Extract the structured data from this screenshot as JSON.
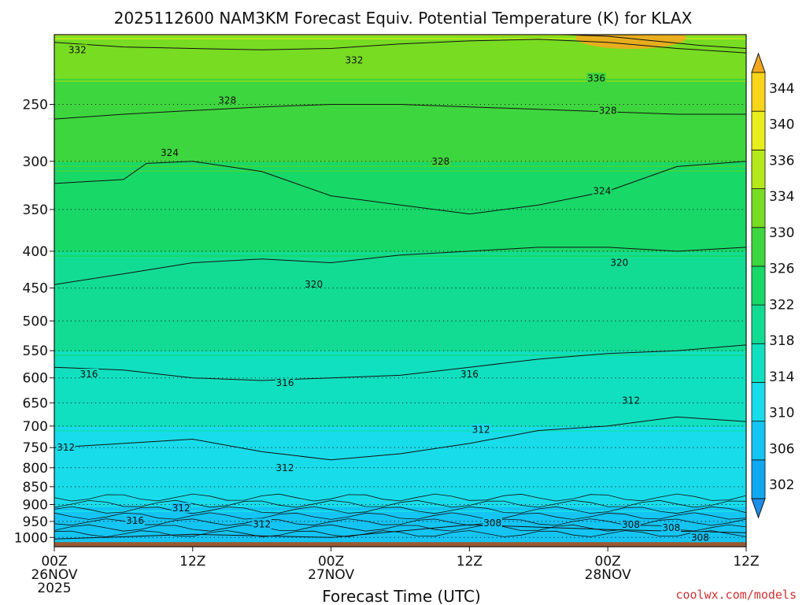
{
  "colors": {
    "background": "#ffffff",
    "ground": "#9a5a32",
    "contour": "#111111",
    "credit": "#d03030"
  },
  "chart_data": {
    "type": "heatmap",
    "title": "2025112600 NAM3KM Forecast Equiv. Potential Temperature (K) for KLAX",
    "xlabel": "Forecast Time (UTC)",
    "ylabel": "",
    "variable": "Equivalent Potential Temperature (K)",
    "x_range_hours": [
      0,
      60
    ],
    "x_ticks": [
      {
        "hour": 0,
        "lines": [
          "00Z",
          "26NOV",
          "2025"
        ]
      },
      {
        "hour": 12,
        "lines": [
          "12Z"
        ]
      },
      {
        "hour": 24,
        "lines": [
          "00Z",
          "27NOV"
        ]
      },
      {
        "hour": 36,
        "lines": [
          "12Z"
        ]
      },
      {
        "hour": 48,
        "lines": [
          "00Z",
          "28NOV"
        ]
      },
      {
        "hour": 60,
        "lines": [
          "12Z"
        ]
      }
    ],
    "y_range_hpa": [
      1030,
      200
    ],
    "y_scale": "log",
    "y_ticks": [
      250,
      300,
      350,
      400,
      450,
      500,
      550,
      600,
      650,
      700,
      750,
      800,
      850,
      900,
      950,
      1000
    ],
    "colorbar": {
      "levels": [
        302,
        306,
        310,
        314,
        318,
        322,
        326,
        330,
        334,
        336,
        340,
        344
      ],
      "tick_labels": [
        "344",
        "340",
        "336",
        "334",
        "330",
        "326",
        "322",
        "318",
        "314",
        "310",
        "306",
        "302"
      ],
      "colors": [
        "#1a8ee8",
        "#10a8f0",
        "#14c4f2",
        "#18dcea",
        "#10e0c0",
        "#12dc94",
        "#18d868",
        "#3ed63e",
        "#78dc22",
        "#b4e81a",
        "#e8ee1c",
        "#f8d41a",
        "#f2a81e"
      ]
    },
    "profile": [
      {
        "p": 1000,
        "theta_e": 308
      },
      {
        "p": 950,
        "theta_e": 309
      },
      {
        "p": 900,
        "theta_e": 310
      },
      {
        "p": 850,
        "theta_e": 311
      },
      {
        "p": 800,
        "theta_e": 312
      },
      {
        "p": 750,
        "theta_e": 313
      },
      {
        "p": 700,
        "theta_e": 314
      },
      {
        "p": 650,
        "theta_e": 315
      },
      {
        "p": 600,
        "theta_e": 316
      },
      {
        "p": 550,
        "theta_e": 318
      },
      {
        "p": 500,
        "theta_e": 319
      },
      {
        "p": 450,
        "theta_e": 320
      },
      {
        "p": 400,
        "theta_e": 322
      },
      {
        "p": 350,
        "theta_e": 324
      },
      {
        "p": 300,
        "theta_e": 326
      },
      {
        "p": 250,
        "theta_e": 328
      },
      {
        "p": 220,
        "theta_e": 331
      },
      {
        "p": 200,
        "theta_e": 334
      }
    ],
    "contour_lines": [
      {
        "label": "332",
        "pts": [
          [
            0,
            205
          ],
          [
            6,
            208
          ],
          [
            12,
            209
          ],
          [
            18,
            210
          ],
          [
            24,
            209
          ],
          [
            30,
            206
          ],
          [
            36,
            204
          ],
          [
            42,
            203
          ],
          [
            48,
            205
          ],
          [
            54,
            209
          ],
          [
            60,
            212
          ]
        ]
      },
      {
        "label": "336",
        "pts": [
          [
            44,
            200
          ],
          [
            48,
            201
          ],
          [
            52,
            204
          ],
          [
            56,
            207
          ],
          [
            60,
            209
          ]
        ]
      },
      {
        "label": "328",
        "pts": [
          [
            0,
            262
          ],
          [
            6,
            258
          ],
          [
            12,
            255
          ],
          [
            18,
            252
          ],
          [
            24,
            250
          ],
          [
            30,
            250
          ],
          [
            36,
            252
          ],
          [
            42,
            254
          ],
          [
            48,
            256
          ],
          [
            54,
            258
          ],
          [
            60,
            258
          ]
        ]
      },
      {
        "label": "324",
        "pts": [
          [
            0,
            322
          ],
          [
            6,
            318
          ],
          [
            8,
            302
          ],
          [
            12,
            300
          ],
          [
            18,
            310
          ],
          [
            24,
            335
          ],
          [
            30,
            345
          ],
          [
            36,
            355
          ],
          [
            42,
            345
          ],
          [
            48,
            330
          ],
          [
            54,
            305
          ],
          [
            60,
            300
          ]
        ]
      },
      {
        "label": "320",
        "pts": [
          [
            0,
            445
          ],
          [
            6,
            430
          ],
          [
            12,
            415
          ],
          [
            18,
            410
          ],
          [
            24,
            415
          ],
          [
            30,
            405
          ],
          [
            36,
            400
          ],
          [
            42,
            395
          ],
          [
            48,
            395
          ],
          [
            54,
            400
          ],
          [
            60,
            395
          ]
        ]
      },
      {
        "label": "316",
        "pts": [
          [
            0,
            580
          ],
          [
            6,
            585
          ],
          [
            12,
            600
          ],
          [
            18,
            605
          ],
          [
            24,
            600
          ],
          [
            30,
            595
          ],
          [
            36,
            580
          ],
          [
            42,
            565
          ],
          [
            48,
            555
          ],
          [
            54,
            550
          ],
          [
            60,
            540
          ]
        ]
      },
      {
        "label": "312",
        "pts": [
          [
            0,
            750
          ],
          [
            6,
            740
          ],
          [
            12,
            730
          ],
          [
            18,
            760
          ],
          [
            24,
            780
          ],
          [
            30,
            765
          ],
          [
            36,
            740
          ],
          [
            42,
            710
          ],
          [
            48,
            700
          ],
          [
            54,
            680
          ],
          [
            60,
            690
          ]
        ]
      },
      {
        "label": "308",
        "pts": [
          [
            0,
            1005
          ],
          [
            12,
            990
          ],
          [
            24,
            1000
          ],
          [
            36,
            960
          ],
          [
            48,
            975
          ],
          [
            60,
            985
          ]
        ]
      }
    ],
    "contour_labels": [
      {
        "text": "332",
        "hour": 2.0,
        "p": 210
      },
      {
        "text": "332",
        "hour": 26.0,
        "p": 217
      },
      {
        "text": "336",
        "hour": 47.0,
        "p": 230
      },
      {
        "text": "328",
        "hour": 15.0,
        "p": 247
      },
      {
        "text": "328",
        "hour": 48.0,
        "p": 255
      },
      {
        "text": "328",
        "hour": 33.5,
        "p": 300
      },
      {
        "text": "324",
        "hour": 10.0,
        "p": 292
      },
      {
        "text": "324",
        "hour": 47.5,
        "p": 330
      },
      {
        "text": "320",
        "hour": 22.5,
        "p": 445
      },
      {
        "text": "320",
        "hour": 49.0,
        "p": 415
      },
      {
        "text": "316",
        "hour": 3.0,
        "p": 593
      },
      {
        "text": "316",
        "hour": 20.0,
        "p": 610
      },
      {
        "text": "316",
        "hour": 36.0,
        "p": 593
      },
      {
        "text": "312",
        "hour": 1.0,
        "p": 750
      },
      {
        "text": "312",
        "hour": 20.0,
        "p": 800
      },
      {
        "text": "312",
        "hour": 37.0,
        "p": 708
      },
      {
        "text": "312",
        "hour": 50.0,
        "p": 645
      },
      {
        "text": "312",
        "hour": 11.0,
        "p": 910
      },
      {
        "text": "316",
        "hour": 7.0,
        "p": 948
      },
      {
        "text": "312",
        "hour": 18.0,
        "p": 958
      },
      {
        "text": "308",
        "hour": 38.0,
        "p": 955
      },
      {
        "text": "308",
        "hour": 50.0,
        "p": 960
      },
      {
        "text": "308",
        "hour": 53.5,
        "p": 970
      },
      {
        "text": "308",
        "hour": 56.0,
        "p": 1000
      }
    ]
  },
  "footer": {
    "credit": "coolwx.com/models"
  }
}
